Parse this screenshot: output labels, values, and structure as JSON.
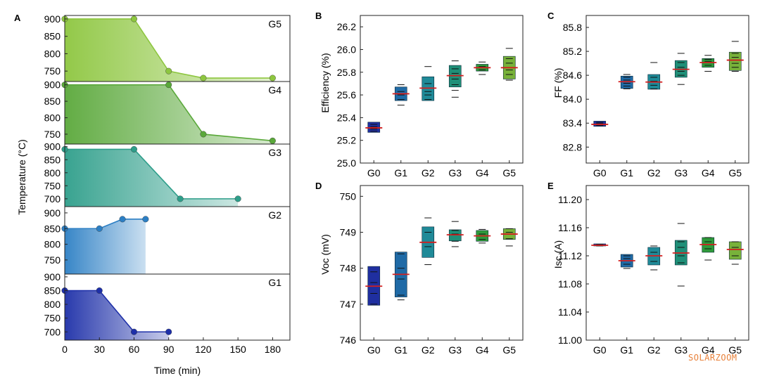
{
  "watermark": "SOLARZOOM",
  "colors": {
    "G5": "#8dc63f",
    "G4": "#5aa83a",
    "G3": "#2e9e8a",
    "G2": "#2c7fc4",
    "G1": "#1d2fa8",
    "box_G0": "#1f2fa0",
    "box_G1": "#1f6aa6",
    "box_G2": "#1f8a98",
    "box_G3": "#1f8f78",
    "box_G4": "#2e9a3a",
    "box_G5": "#78b23a",
    "median": "#d21f1f"
  },
  "chart_data": [
    {
      "panel": "A",
      "type": "line",
      "xlabel": "Time (min)",
      "ylabel": "Temperature (°C)",
      "xticks": [
        "0",
        "30",
        "60",
        "90",
        "120",
        "150",
        "180"
      ],
      "xlim": [
        0,
        195
      ],
      "series": [
        {
          "name": "G5",
          "x": [
            0,
            60,
            90,
            120,
            180
          ],
          "y": [
            900,
            900,
            750,
            730,
            730
          ],
          "yticks": [
            "900",
            "850",
            "800",
            "750"
          ],
          "ylim": [
            720,
            910
          ]
        },
        {
          "name": "G4",
          "x": [
            0,
            90,
            120,
            180
          ],
          "y": [
            900,
            900,
            750,
            730
          ],
          "yticks": [
            "900",
            "850",
            "800",
            "750"
          ],
          "ylim": [
            720,
            910
          ]
        },
        {
          "name": "G3",
          "x": [
            0,
            60,
            100,
            150
          ],
          "y": [
            890,
            890,
            700,
            700
          ],
          "yticks": [
            "900",
            "850",
            "800",
            "750",
            "700"
          ],
          "ylim": [
            670,
            910
          ]
        },
        {
          "name": "G2",
          "x": [
            0,
            30,
            50,
            70
          ],
          "y": [
            850,
            850,
            880,
            880
          ],
          "yticks": [
            "900",
            "850",
            "800",
            "750"
          ],
          "ylim": [
            705,
            920
          ]
        },
        {
          "name": "G1",
          "x": [
            0,
            30,
            60,
            90
          ],
          "y": [
            850,
            850,
            700,
            700
          ],
          "yticks": [
            "900",
            "850",
            "800",
            "750",
            "700"
          ],
          "ylim": [
            670,
            910
          ]
        }
      ]
    },
    {
      "panel": "B",
      "type": "box",
      "ylabel": "Efficiency (%)",
      "categories": [
        "G0",
        "G1",
        "G2",
        "G3",
        "G4",
        "G5"
      ],
      "yticks": [
        "26.2",
        "26.0",
        "25.8",
        "25.6",
        "25.4",
        "25.2",
        "25.0"
      ],
      "ylim": [
        25.0,
        26.3
      ],
      "boxes": [
        {
          "q1": 25.27,
          "q3": 25.36,
          "median": 25.31,
          "points": [
            25.28,
            25.3,
            25.32,
            25.34
          ]
        },
        {
          "q1": 25.55,
          "q3": 25.67,
          "median": 25.61,
          "points": [
            25.51,
            25.56,
            25.6,
            25.63,
            25.69
          ]
        },
        {
          "q1": 25.55,
          "q3": 25.76,
          "median": 25.66,
          "points": [
            25.56,
            25.6,
            25.63,
            25.7,
            25.85
          ]
        },
        {
          "q1": 25.67,
          "q3": 25.86,
          "median": 25.77,
          "points": [
            25.58,
            25.64,
            25.69,
            25.74,
            25.79,
            25.83,
            25.9
          ]
        },
        {
          "q1": 25.81,
          "q3": 25.87,
          "median": 25.84,
          "points": [
            25.78,
            25.82,
            25.85,
            25.89
          ]
        },
        {
          "q1": 25.74,
          "q3": 25.94,
          "median": 25.84,
          "points": [
            25.73,
            25.78,
            25.82,
            25.88,
            25.92,
            26.01
          ]
        }
      ]
    },
    {
      "panel": "C",
      "type": "box",
      "ylabel": "FF (%)",
      "categories": [
        "G0",
        "G1",
        "G2",
        "G3",
        "G4",
        "G5"
      ],
      "yticks": [
        "85.8",
        "85.2",
        "84.6",
        "84.0",
        "83.4",
        "82.8"
      ],
      "ylim": [
        82.4,
        86.1
      ],
      "boxes": [
        {
          "q1": 83.32,
          "q3": 83.45,
          "median": 83.37,
          "points": [
            83.34,
            83.39,
            83.42
          ]
        },
        {
          "q1": 84.27,
          "q3": 84.58,
          "median": 84.44,
          "points": [
            84.26,
            84.33,
            84.4,
            84.48,
            84.55,
            84.62
          ]
        },
        {
          "q1": 84.25,
          "q3": 84.62,
          "median": 84.43,
          "points": [
            84.26,
            84.35,
            84.45,
            84.55,
            84.92
          ]
        },
        {
          "q1": 84.55,
          "q3": 84.97,
          "median": 84.75,
          "points": [
            84.37,
            84.6,
            84.7,
            84.8,
            84.92,
            85.15
          ]
        },
        {
          "q1": 84.8,
          "q3": 85.02,
          "median": 84.92,
          "points": [
            84.7,
            84.85,
            84.95,
            85.0,
            85.1
          ]
        },
        {
          "q1": 84.72,
          "q3": 85.18,
          "median": 84.98,
          "points": [
            84.7,
            84.8,
            84.9,
            85.05,
            85.15,
            85.45
          ]
        }
      ]
    },
    {
      "panel": "D",
      "type": "box",
      "ylabel": "Voc (mV)",
      "categories": [
        "G0",
        "G1",
        "G2",
        "G3",
        "G4",
        "G5"
      ],
      "yticks": [
        "750",
        "749",
        "748",
        "747",
        "746"
      ],
      "ylim": [
        746,
        750.3
      ],
      "boxes": [
        {
          "q1": 746.97,
          "q3": 748.05,
          "median": 747.5,
          "points": [
            747.0,
            747.3,
            747.6,
            747.9
          ]
        },
        {
          "q1": 747.2,
          "q3": 748.45,
          "median": 747.83,
          "points": [
            747.12,
            747.25,
            747.7,
            748.0,
            748.4
          ]
        },
        {
          "q1": 748.3,
          "q3": 749.15,
          "median": 748.72,
          "points": [
            748.1,
            748.6,
            749.0,
            749.4
          ]
        },
        {
          "q1": 748.76,
          "q3": 749.07,
          "median": 748.93,
          "points": [
            748.6,
            748.75,
            748.95,
            749.05,
            749.3
          ]
        },
        {
          "q1": 748.75,
          "q3": 749.05,
          "median": 748.9,
          "points": [
            748.7,
            748.8,
            748.95,
            749.08
          ]
        },
        {
          "q1": 748.8,
          "q3": 749.1,
          "median": 748.95,
          "points": [
            748.62,
            748.82,
            749.0,
            749.1
          ]
        }
      ]
    },
    {
      "panel": "E",
      "type": "box",
      "ylabel": "Isc (A)",
      "categories": [
        "G0",
        "G1",
        "G2",
        "G3",
        "G4",
        "G5"
      ],
      "yticks": [
        "11.20",
        "11.16",
        "11.12",
        "11.08",
        "11.04",
        "11.00"
      ],
      "ylim": [
        11.0,
        11.22
      ],
      "boxes": [
        {
          "q1": 11.134,
          "q3": 11.137,
          "median": 11.135,
          "points": [
            11.134,
            11.136
          ]
        },
        {
          "q1": 11.104,
          "q3": 11.122,
          "median": 11.113,
          "points": [
            11.102,
            11.108,
            11.116,
            11.12
          ]
        },
        {
          "q1": 11.107,
          "q3": 11.132,
          "median": 11.12,
          "points": [
            11.1,
            11.112,
            11.125,
            11.134
          ]
        },
        {
          "q1": 11.107,
          "q3": 11.142,
          "median": 11.124,
          "points": [
            11.077,
            11.11,
            11.12,
            11.132,
            11.14,
            11.166
          ]
        },
        {
          "q1": 11.125,
          "q3": 11.146,
          "median": 11.136,
          "points": [
            11.114,
            11.13,
            11.14,
            11.146
          ]
        },
        {
          "q1": 11.115,
          "q3": 11.14,
          "median": 11.129,
          "points": [
            11.108,
            11.12,
            11.132,
            11.14
          ]
        }
      ]
    }
  ]
}
